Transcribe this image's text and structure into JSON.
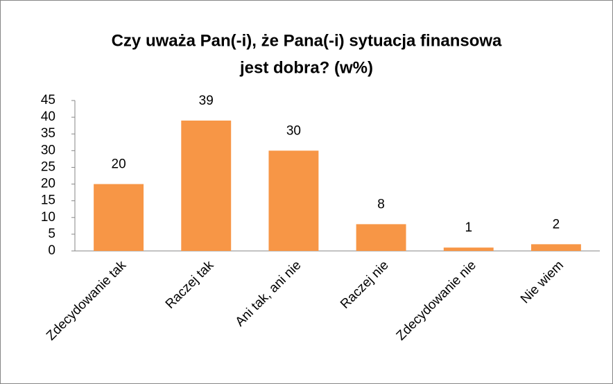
{
  "chart_data": {
    "type": "bar",
    "title": [
      "Czy uważa Pan(-i), że Pana(-i) sytuacja finansowa",
      "jest dobra? (w%)"
    ],
    "categories": [
      "Zdecydowanie tak",
      "Raczej tak",
      "Ani tak, ani nie",
      "Raczej nie",
      "Zdecydowanie nie",
      "Nie wiem"
    ],
    "values": [
      20,
      39,
      30,
      8,
      1,
      2
    ],
    "color": "#f79646",
    "ylim": [
      0,
      45
    ],
    "yticks": [
      0,
      5,
      10,
      15,
      20,
      25,
      30,
      35,
      40,
      45
    ],
    "grid": false
  }
}
